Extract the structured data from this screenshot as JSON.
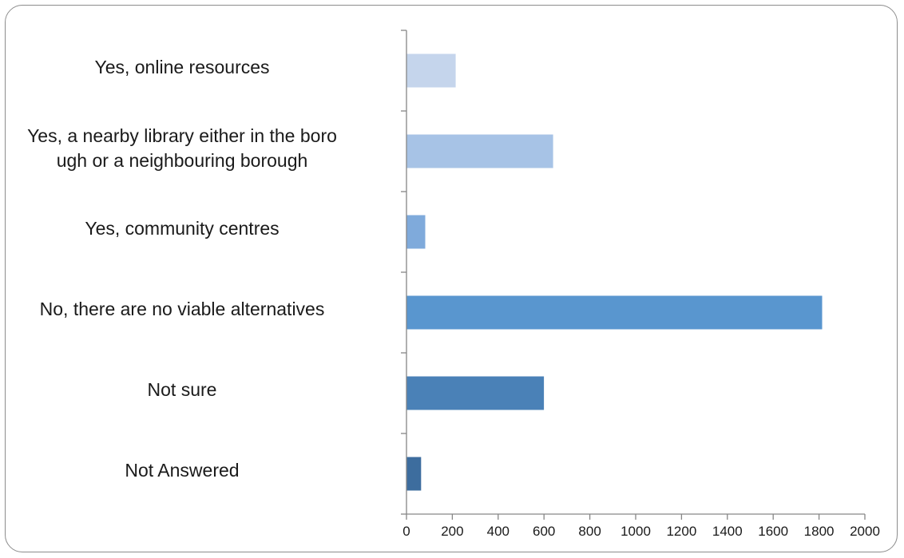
{
  "chart_data": {
    "type": "bar",
    "orientation": "horizontal",
    "categories": [
      "Yes, online resources",
      "Yes, a nearby library either in the boro ugh or a neighbouring borough",
      "Yes, community centres",
      "No, there are no viable alternatives",
      "Not sure",
      "Not Answered"
    ],
    "category_label_lines": [
      [
        "Yes, online resources"
      ],
      [
        "Yes, a nearby library either in the boro",
        "ugh or a neighbouring borough"
      ],
      [
        "Yes, community centres"
      ],
      [
        "No, there are no viable alternatives"
      ],
      [
        "Not sure"
      ],
      [
        "Not Answered"
      ]
    ],
    "values": [
      213,
      638,
      80,
      1812,
      598,
      62
    ],
    "colors": [
      "#c5d5ec",
      "#a7c3e6",
      "#7faadb",
      "#5996cf",
      "#4a81b7",
      "#3d6d9e"
    ],
    "xticks": [
      "0",
      "200",
      "400",
      "600",
      "800",
      "1000",
      "1200",
      "1400",
      "1600",
      "1800",
      "2000"
    ],
    "xlim": [
      0,
      2000
    ],
    "title": "",
    "xlabel": "",
    "ylabel": "",
    "grid": false,
    "legend": "none"
  }
}
